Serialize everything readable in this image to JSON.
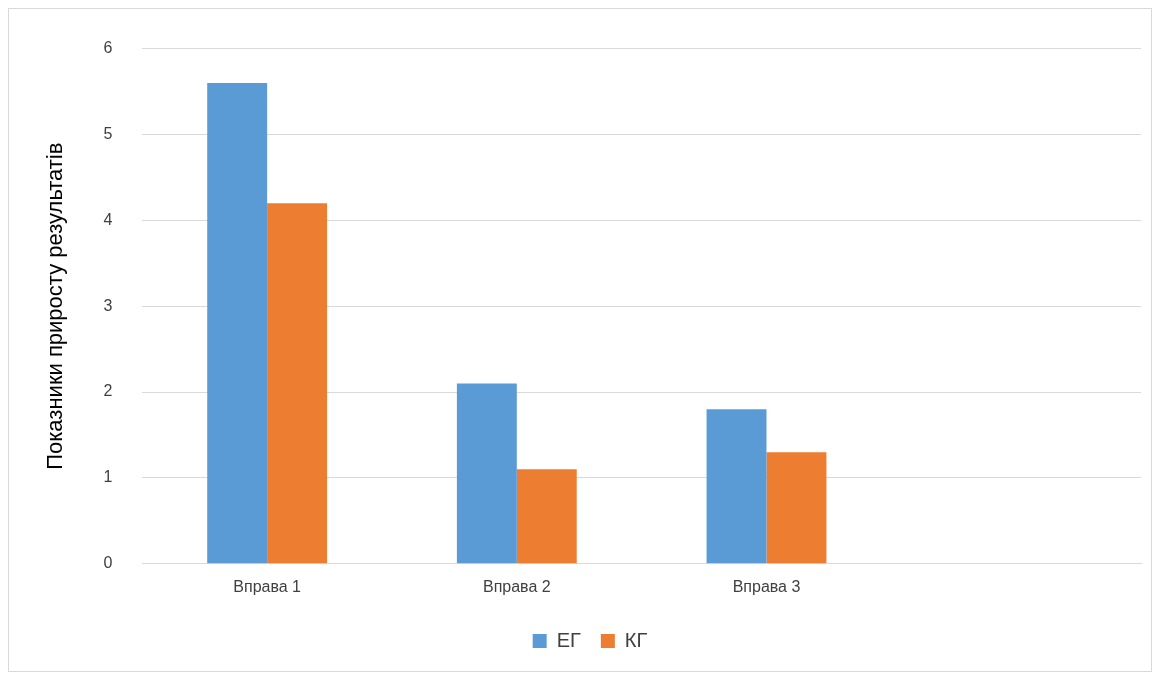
{
  "chart_data": {
    "type": "bar",
    "ylabel": "Показники приросту результатів",
    "categories": [
      "Вправа 1",
      "Вправа 2",
      "Вправа 3",
      null
    ],
    "series": [
      {
        "name": "ЕГ",
        "color": "#5b9bd5",
        "values": [
          5.6,
          2.1,
          1.8,
          null
        ]
      },
      {
        "name": "КГ",
        "color": "#ed7d31",
        "values": [
          4.2,
          1.1,
          1.3,
          null
        ]
      }
    ],
    "ylim": [
      0,
      6
    ],
    "yticks": [
      0,
      1,
      2,
      3,
      4,
      5,
      6
    ],
    "grid": "y",
    "legend": "bottom"
  }
}
